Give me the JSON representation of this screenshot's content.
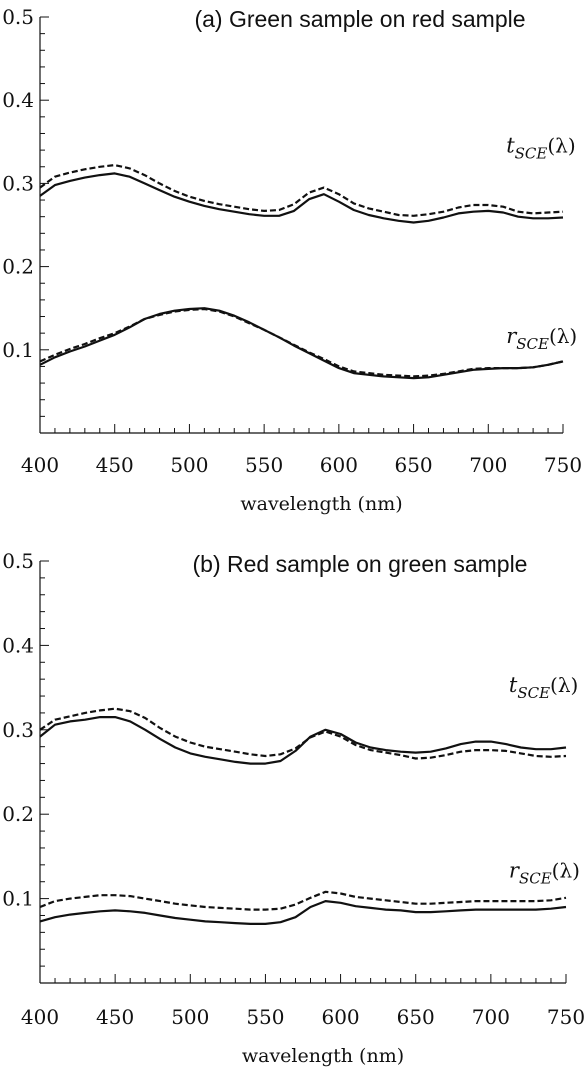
{
  "chart_data": [
    {
      "type": "line",
      "title": "(a) Green sample on red sample",
      "xlabel": "wavelength (nm)",
      "ylabel": "",
      "xlim": [
        400,
        750
      ],
      "ylim": [
        0,
        0.5
      ],
      "x_ticks": [
        400,
        450,
        500,
        550,
        600,
        650,
        700,
        750
      ],
      "y_ticks": [
        0.1,
        0.2,
        0.3,
        0.4,
        0.5
      ],
      "x_tick_labels": [
        "400",
        "450",
        "500",
        "550",
        "600",
        "650",
        "700",
        "750"
      ],
      "y_tick_labels": [
        "0.1",
        "0.2",
        "0.3",
        "0.4",
        "0.5"
      ],
      "x": [
        400,
        410,
        420,
        430,
        440,
        450,
        460,
        470,
        480,
        490,
        500,
        510,
        520,
        530,
        540,
        550,
        560,
        570,
        580,
        590,
        600,
        610,
        620,
        630,
        640,
        650,
        660,
        670,
        680,
        690,
        700,
        710,
        720,
        730,
        740,
        750
      ],
      "series": [
        {
          "name": "tSCE_solid",
          "style": "solid",
          "values": [
            0.285,
            0.298,
            0.303,
            0.307,
            0.31,
            0.312,
            0.308,
            0.3,
            0.292,
            0.284,
            0.278,
            0.273,
            0.269,
            0.266,
            0.263,
            0.261,
            0.261,
            0.267,
            0.281,
            0.287,
            0.278,
            0.268,
            0.262,
            0.258,
            0.255,
            0.253,
            0.255,
            0.259,
            0.264,
            0.266,
            0.267,
            0.265,
            0.26,
            0.258,
            0.258,
            0.259
          ]
        },
        {
          "name": "tSCE_dashed",
          "style": "dashed",
          "values": [
            0.295,
            0.308,
            0.313,
            0.317,
            0.32,
            0.322,
            0.318,
            0.31,
            0.3,
            0.291,
            0.284,
            0.279,
            0.275,
            0.272,
            0.269,
            0.267,
            0.268,
            0.275,
            0.289,
            0.295,
            0.287,
            0.276,
            0.27,
            0.266,
            0.262,
            0.261,
            0.263,
            0.266,
            0.271,
            0.274,
            0.274,
            0.272,
            0.266,
            0.264,
            0.265,
            0.266
          ]
        },
        {
          "name": "rSCE_solid",
          "style": "solid",
          "values": [
            0.082,
            0.091,
            0.098,
            0.104,
            0.111,
            0.118,
            0.127,
            0.137,
            0.143,
            0.147,
            0.149,
            0.15,
            0.147,
            0.141,
            0.133,
            0.124,
            0.115,
            0.105,
            0.096,
            0.087,
            0.078,
            0.072,
            0.07,
            0.068,
            0.067,
            0.066,
            0.067,
            0.07,
            0.073,
            0.076,
            0.077,
            0.078,
            0.078,
            0.079,
            0.082,
            0.086
          ]
        },
        {
          "name": "rSCE_dashed",
          "style": "dashed",
          "values": [
            0.086,
            0.094,
            0.101,
            0.107,
            0.114,
            0.12,
            0.128,
            0.137,
            0.142,
            0.146,
            0.148,
            0.149,
            0.146,
            0.14,
            0.132,
            0.124,
            0.115,
            0.106,
            0.097,
            0.089,
            0.08,
            0.074,
            0.072,
            0.07,
            0.069,
            0.068,
            0.069,
            0.071,
            0.074,
            0.077,
            0.078,
            0.078,
            0.078,
            0.079,
            0.082,
            0.086
          ]
        }
      ],
      "annotations": [
        {
          "base": "t",
          "sub": "SCE",
          "suffix": "(λ)",
          "x": 712,
          "y": 0.337
        },
        {
          "base": "r",
          "sub": "SCE",
          "suffix": "(λ)",
          "x": 712,
          "y": 0.108
        }
      ]
    },
    {
      "type": "line",
      "title": "(b) Red sample on green sample",
      "xlabel": "wavelength (nm)",
      "ylabel": "",
      "xlim": [
        400,
        750
      ],
      "ylim": [
        0,
        0.5
      ],
      "x_ticks": [
        400,
        450,
        500,
        550,
        600,
        650,
        700,
        750
      ],
      "y_ticks": [
        0.1,
        0.2,
        0.3,
        0.4,
        0.5
      ],
      "x_tick_labels": [
        "400",
        "450",
        "500",
        "550",
        "600",
        "650",
        "700",
        "750"
      ],
      "y_tick_labels": [
        "0.1",
        "0.2",
        "0.3",
        "0.4",
        "0.5"
      ],
      "x": [
        400,
        410,
        420,
        430,
        440,
        450,
        460,
        470,
        480,
        490,
        500,
        510,
        520,
        530,
        540,
        550,
        560,
        570,
        580,
        590,
        600,
        610,
        620,
        630,
        640,
        650,
        660,
        670,
        680,
        690,
        700,
        710,
        720,
        730,
        740,
        750
      ],
      "series": [
        {
          "name": "tSCE_solid",
          "style": "solid",
          "values": [
            0.292,
            0.306,
            0.31,
            0.312,
            0.315,
            0.315,
            0.31,
            0.3,
            0.289,
            0.279,
            0.272,
            0.268,
            0.265,
            0.262,
            0.26,
            0.26,
            0.263,
            0.275,
            0.292,
            0.3,
            0.295,
            0.285,
            0.279,
            0.276,
            0.274,
            0.273,
            0.274,
            0.278,
            0.283,
            0.286,
            0.286,
            0.283,
            0.279,
            0.277,
            0.277,
            0.279
          ]
        },
        {
          "name": "tSCE_dashed",
          "style": "dashed",
          "values": [
            0.3,
            0.312,
            0.316,
            0.32,
            0.323,
            0.325,
            0.322,
            0.314,
            0.302,
            0.292,
            0.285,
            0.28,
            0.277,
            0.274,
            0.271,
            0.269,
            0.271,
            0.278,
            0.291,
            0.298,
            0.292,
            0.282,
            0.276,
            0.273,
            0.27,
            0.266,
            0.267,
            0.27,
            0.274,
            0.276,
            0.276,
            0.275,
            0.272,
            0.269,
            0.268,
            0.269
          ]
        },
        {
          "name": "rSCE_solid",
          "style": "solid",
          "values": [
            0.073,
            0.078,
            0.081,
            0.083,
            0.085,
            0.086,
            0.085,
            0.083,
            0.08,
            0.077,
            0.075,
            0.073,
            0.072,
            0.071,
            0.07,
            0.07,
            0.072,
            0.078,
            0.09,
            0.097,
            0.095,
            0.091,
            0.089,
            0.087,
            0.086,
            0.084,
            0.084,
            0.085,
            0.086,
            0.087,
            0.087,
            0.087,
            0.087,
            0.087,
            0.088,
            0.09
          ]
        },
        {
          "name": "rSCE_dashed",
          "style": "dashed",
          "values": [
            0.09,
            0.097,
            0.1,
            0.102,
            0.104,
            0.104,
            0.103,
            0.1,
            0.097,
            0.094,
            0.092,
            0.09,
            0.089,
            0.088,
            0.087,
            0.087,
            0.088,
            0.093,
            0.101,
            0.108,
            0.106,
            0.102,
            0.1,
            0.098,
            0.096,
            0.094,
            0.094,
            0.095,
            0.096,
            0.097,
            0.097,
            0.097,
            0.097,
            0.097,
            0.098,
            0.101
          ]
        }
      ],
      "annotations": [
        {
          "base": "t",
          "sub": "SCE",
          "suffix": "(λ)",
          "x": 712,
          "y": 0.345
        },
        {
          "base": "r",
          "sub": "SCE",
          "suffix": "(λ)",
          "x": 712,
          "y": 0.125
        }
      ]
    }
  ]
}
